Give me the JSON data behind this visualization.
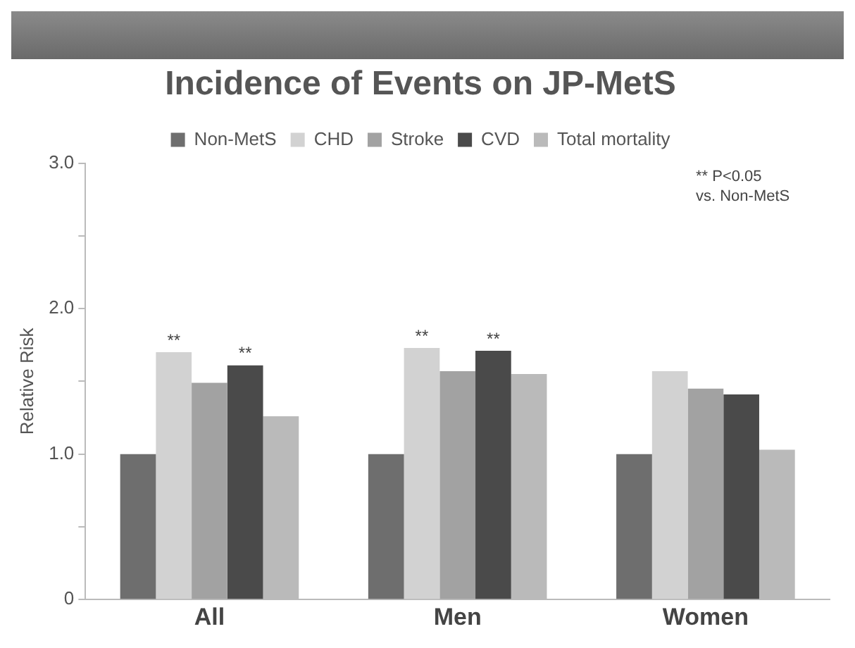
{
  "chart_data": {
    "type": "bar",
    "title": "Incidence of Events on JP-MetS",
    "ylabel": "Relative Risk",
    "categories": [
      "All",
      "Men",
      "Women"
    ],
    "series": [
      {
        "name": "Non-MetS",
        "color": "#6e6e6e",
        "values": [
          1.0,
          1.0,
          1.0
        ]
      },
      {
        "name": "CHD",
        "color": "#d2d2d2",
        "values": [
          1.7,
          1.73,
          1.57
        ],
        "value_labels": [
          "**",
          "**",
          null
        ]
      },
      {
        "name": "Stroke",
        "color": "#a2a2a2",
        "values": [
          1.49,
          1.57,
          1.45
        ]
      },
      {
        "name": "CVD",
        "color": "#4a4a4a",
        "values": [
          1.61,
          1.71,
          1.41
        ],
        "value_labels": [
          "**",
          "**",
          null
        ]
      },
      {
        "name": "Total mortality",
        "color": "#bababa",
        "values": [
          1.26,
          1.55,
          1.03
        ]
      }
    ],
    "ylim": [
      0,
      3
    ],
    "yticks": [
      {
        "value": 0,
        "label": "0"
      },
      {
        "value": 0.5,
        "label": null
      },
      {
        "value": 1,
        "label": "1.0"
      },
      {
        "value": 1.5,
        "label": null
      },
      {
        "value": 2,
        "label": "2.0"
      },
      {
        "value": 2.5,
        "label": null
      },
      {
        "value": 3,
        "label": "3.0"
      }
    ],
    "grid": false,
    "legend": "top",
    "annotations": [
      "** P<0.05\nvs. Non-MetS"
    ]
  }
}
